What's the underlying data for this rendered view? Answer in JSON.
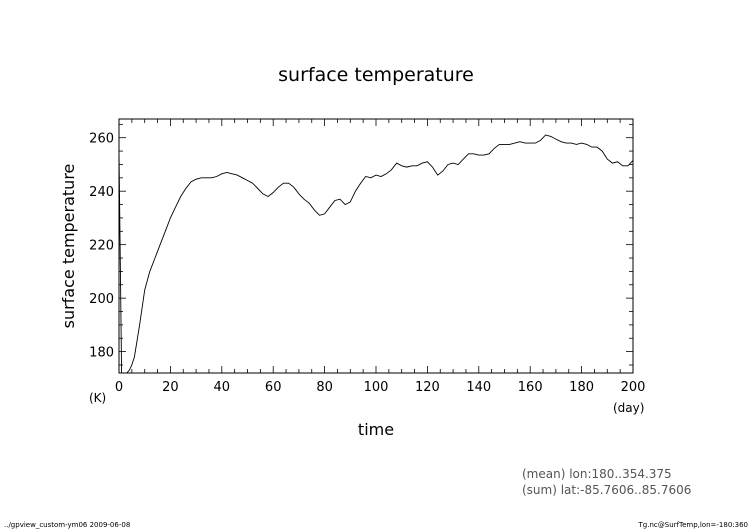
{
  "chart_data": {
    "type": "line",
    "title": "surface temperature",
    "xlabel": "time",
    "ylabel": "surface temperature",
    "x_unit": "(day)",
    "y_unit": "(K)",
    "xlim": [
      0,
      200
    ],
    "ylim": [
      172,
      267
    ],
    "x_ticks": [
      0,
      20,
      40,
      60,
      80,
      100,
      120,
      140,
      160,
      180,
      200
    ],
    "y_ticks": [
      180,
      200,
      220,
      240,
      260
    ],
    "grid": false,
    "series": [
      {
        "x": [
          0,
          1,
          2,
          3,
          4,
          5,
          6,
          8,
          10,
          12,
          14,
          16,
          18,
          20,
          22,
          24,
          26,
          28,
          30,
          32,
          34,
          36,
          38,
          40,
          42,
          44,
          46,
          48,
          50,
          52,
          54,
          56,
          58,
          60,
          62,
          64,
          66,
          68,
          70,
          72,
          74,
          76,
          78,
          80,
          82,
          84,
          86,
          88,
          90,
          92,
          94,
          96,
          98,
          100,
          102,
          104,
          106,
          108,
          110,
          112,
          114,
          116,
          118,
          120,
          122,
          124,
          126,
          128,
          130,
          132,
          134,
          136,
          138,
          140,
          142,
          144,
          146,
          148,
          150,
          152,
          154,
          156,
          158,
          160,
          162,
          164,
          166,
          168,
          170,
          172,
          174,
          176,
          178,
          180,
          182,
          184,
          186,
          188,
          190,
          192,
          194,
          196,
          198,
          200
        ],
        "values": [
          255,
          172,
          171,
          172,
          173,
          175,
          178,
          190,
          203,
          210,
          215,
          220,
          225,
          230,
          234,
          238,
          241,
          243.5,
          244.5,
          245,
          245,
          245,
          245.5,
          246.5,
          247,
          246.5,
          246,
          245,
          244,
          243,
          241,
          239,
          238,
          239.5,
          241.5,
          243,
          243,
          241.5,
          239,
          237,
          235.5,
          233,
          231,
          231.5,
          234,
          236.5,
          237,
          235,
          236,
          240,
          243,
          245.5,
          245,
          246,
          245.5,
          246.5,
          248,
          250.5,
          249.5,
          249,
          249.5,
          249.5,
          250.5,
          251,
          249,
          246,
          247.5,
          250,
          250.5,
          250,
          252,
          254,
          254,
          253.5,
          253.5,
          254,
          256,
          257.5,
          257.5,
          257.5,
          258,
          258.5,
          258,
          258,
          258,
          259,
          261,
          260.5,
          259.5,
          258.5,
          258,
          258,
          257.5,
          258,
          257.5,
          256.5,
          256.5,
          255,
          252,
          250.5,
          251,
          249.5,
          249.5,
          251.5
        ]
      }
    ]
  },
  "annotations": {
    "mean_note": "(mean) lon:180..354.375",
    "sum_note": "(sum) lat:-85.7606..85.7606"
  },
  "footer": {
    "left": "../gpview_custom-ym06  2009-06-08",
    "right": "Tg.nc@SurfTemp,lon=-180:360"
  }
}
